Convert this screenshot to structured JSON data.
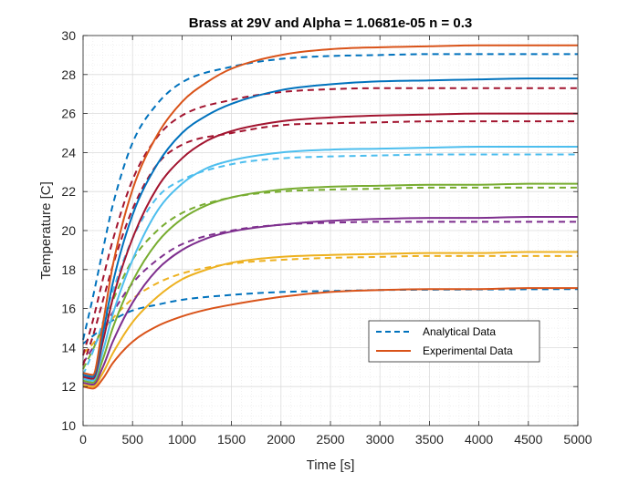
{
  "chart_data": {
    "type": "line",
    "title": "Brass at 29V and Alpha = 1.0681e-05 n = 0.3",
    "xlabel": "Time [s]",
    "ylabel": "Temperature [C]",
    "xlim": [
      0,
      5000
    ],
    "ylim": [
      10,
      30
    ],
    "xticks": [
      0,
      500,
      1000,
      1500,
      2000,
      2500,
      3000,
      3500,
      4000,
      4500,
      5000
    ],
    "yticks": [
      10,
      12,
      14,
      16,
      18,
      20,
      22,
      24,
      26,
      28,
      30
    ],
    "xtick_labels": [
      "0",
      "500",
      "1000",
      "1500",
      "2000",
      "2500",
      "3000",
      "3500",
      "4000",
      "4500",
      "5000"
    ],
    "ytick_labels": [
      "10",
      "12",
      "14",
      "16",
      "18",
      "20",
      "22",
      "24",
      "26",
      "28",
      "30"
    ],
    "grid": true,
    "legend_position": "bottom-right",
    "legend": [
      {
        "label": "Analytical Data",
        "color": "#0072BD",
        "style": "dashed"
      },
      {
        "label": "Experimental Data",
        "color": "#D95319",
        "style": "solid"
      }
    ],
    "series": [
      {
        "group": "analytical",
        "color": "#0072BD",
        "style": "dashed",
        "x": [
          0,
          100,
          200,
          300,
          500,
          750,
          1000,
          1500,
          2000,
          2500,
          3000,
          3500,
          4000,
          4500,
          5000
        ],
        "y": [
          14.2,
          14.6,
          15.0,
          15.4,
          15.9,
          16.2,
          16.45,
          16.7,
          16.85,
          16.9,
          16.95,
          16.97,
          16.98,
          16.99,
          17.0
        ]
      },
      {
        "group": "experimental",
        "color": "#D95319",
        "style": "solid",
        "x": [
          0,
          100,
          200,
          300,
          500,
          750,
          1000,
          1250,
          1500,
          2000,
          2500,
          3000,
          3500,
          4000,
          4500,
          5000
        ],
        "y": [
          12.0,
          11.9,
          12.4,
          13.2,
          14.3,
          15.1,
          15.6,
          15.95,
          16.2,
          16.6,
          16.85,
          16.95,
          17.0,
          17.0,
          17.05,
          17.05
        ]
      },
      {
        "group": "analytical",
        "color": "#EDB120",
        "style": "dashed",
        "x": [
          0,
          100,
          200,
          300,
          500,
          750,
          1000,
          1500,
          2000,
          2500,
          3000,
          3500,
          4000,
          4500,
          5000
        ],
        "y": [
          13.7,
          14.2,
          14.9,
          15.5,
          16.5,
          17.3,
          17.8,
          18.3,
          18.5,
          18.6,
          18.65,
          18.7,
          18.7,
          18.7,
          18.7
        ]
      },
      {
        "group": "experimental",
        "color": "#EDB120",
        "style": "solid",
        "x": [
          0,
          100,
          200,
          300,
          500,
          750,
          1000,
          1250,
          1500,
          2000,
          2500,
          3000,
          3500,
          4000,
          4500,
          5000
        ],
        "y": [
          12.1,
          12.0,
          12.7,
          13.7,
          15.3,
          16.6,
          17.5,
          18.0,
          18.35,
          18.65,
          18.75,
          18.8,
          18.85,
          18.85,
          18.9,
          18.9
        ]
      },
      {
        "group": "analytical",
        "color": "#7E2F8E",
        "style": "dashed",
        "x": [
          0,
          100,
          200,
          300,
          500,
          750,
          1000,
          1500,
          2000,
          2500,
          3000,
          3500,
          4000,
          4500,
          5000
        ],
        "y": [
          13.2,
          14.0,
          14.9,
          15.8,
          17.3,
          18.5,
          19.3,
          20.0,
          20.3,
          20.4,
          20.45,
          20.45,
          20.45,
          20.45,
          20.45
        ]
      },
      {
        "group": "experimental",
        "color": "#7E2F8E",
        "style": "solid",
        "x": [
          0,
          100,
          200,
          300,
          500,
          750,
          1000,
          1250,
          1500,
          2000,
          2500,
          3000,
          3500,
          4000,
          4500,
          5000
        ],
        "y": [
          12.2,
          12.1,
          13.0,
          14.3,
          16.3,
          18.0,
          19.0,
          19.6,
          19.95,
          20.3,
          20.5,
          20.6,
          20.65,
          20.65,
          20.7,
          20.7
        ]
      },
      {
        "group": "analytical",
        "color": "#77AC30",
        "style": "dashed",
        "x": [
          0,
          100,
          200,
          300,
          500,
          750,
          1000,
          1500,
          2000,
          2500,
          3000,
          3500,
          4000,
          4500,
          5000
        ],
        "y": [
          12.9,
          13.9,
          15.1,
          16.4,
          18.5,
          20.0,
          20.9,
          21.7,
          22.0,
          22.1,
          22.15,
          22.2,
          22.2,
          22.2,
          22.2
        ]
      },
      {
        "group": "experimental",
        "color": "#77AC30",
        "style": "solid",
        "x": [
          0,
          100,
          200,
          300,
          500,
          750,
          1000,
          1250,
          1500,
          2000,
          2500,
          3000,
          3500,
          4000,
          4500,
          5000
        ],
        "y": [
          12.3,
          12.2,
          13.4,
          15.0,
          17.4,
          19.4,
          20.6,
          21.3,
          21.7,
          22.1,
          22.25,
          22.3,
          22.35,
          22.35,
          22.4,
          22.4
        ]
      },
      {
        "group": "analytical",
        "color": "#4DBEEE",
        "style": "dashed",
        "x": [
          0,
          100,
          200,
          300,
          500,
          750,
          1000,
          1500,
          2000,
          2500,
          3000,
          3500,
          4000,
          4500,
          5000
        ],
        "y": [
          12.6,
          13.8,
          15.3,
          16.9,
          19.6,
          21.7,
          22.6,
          23.4,
          23.7,
          23.8,
          23.85,
          23.9,
          23.9,
          23.9,
          23.9
        ]
      },
      {
        "group": "experimental",
        "color": "#4DBEEE",
        "style": "solid",
        "x": [
          0,
          100,
          200,
          300,
          500,
          750,
          1000,
          1250,
          1500,
          2000,
          2500,
          3000,
          3500,
          4000,
          4500,
          5000
        ],
        "y": [
          12.4,
          12.3,
          13.8,
          15.7,
          18.5,
          21.0,
          22.4,
          23.2,
          23.6,
          24.0,
          24.15,
          24.2,
          24.25,
          24.3,
          24.3,
          24.3
        ]
      },
      {
        "group": "analytical",
        "color": "#A2142F",
        "style": "dashed",
        "x": [
          0,
          100,
          200,
          300,
          500,
          750,
          1000,
          1500,
          2000,
          2500,
          3000,
          3500,
          4000,
          4500,
          5000
        ],
        "y": [
          13.1,
          14.6,
          16.4,
          18.2,
          21.1,
          23.4,
          24.4,
          25.0,
          25.4,
          25.5,
          25.55,
          25.6,
          25.6,
          25.6,
          25.6
        ]
      },
      {
        "group": "experimental",
        "color": "#A2142F",
        "style": "solid",
        "x": [
          0,
          100,
          200,
          300,
          500,
          750,
          1000,
          1250,
          1500,
          2000,
          2500,
          3000,
          3500,
          4000,
          4500,
          5000
        ],
        "y": [
          12.5,
          12.4,
          14.3,
          16.5,
          19.6,
          22.2,
          23.7,
          24.6,
          25.1,
          25.6,
          25.8,
          25.9,
          25.95,
          26.0,
          26.0,
          26.0
        ]
      },
      {
        "group": "analytical",
        "color": "#A2142F",
        "style": "dashed",
        "x": [
          0,
          100,
          200,
          300,
          500,
          750,
          1000,
          1500,
          2000,
          2500,
          3000,
          3500,
          4000,
          4500,
          5000
        ],
        "y": [
          13.6,
          15.4,
          17.5,
          19.5,
          22.6,
          24.8,
          25.9,
          26.7,
          27.1,
          27.25,
          27.3,
          27.3,
          27.3,
          27.3,
          27.3
        ]
      },
      {
        "group": "experimental",
        "color": "#0072BD",
        "style": "solid",
        "x": [
          0,
          100,
          200,
          300,
          500,
          750,
          1000,
          1250,
          1500,
          2000,
          2500,
          3000,
          3500,
          4000,
          4500,
          5000
        ],
        "y": [
          12.6,
          12.5,
          14.7,
          17.3,
          20.8,
          23.4,
          25.0,
          25.9,
          26.5,
          27.2,
          27.5,
          27.65,
          27.7,
          27.75,
          27.8,
          27.8
        ]
      },
      {
        "group": "analytical",
        "color": "#0072BD",
        "style": "dashed",
        "x": [
          0,
          100,
          200,
          300,
          500,
          750,
          1000,
          1500,
          2000,
          2500,
          3000,
          3500,
          4000,
          4500,
          5000
        ],
        "y": [
          14.4,
          16.6,
          19.0,
          21.3,
          24.5,
          26.5,
          27.6,
          28.4,
          28.8,
          28.95,
          29.0,
          29.05,
          29.05,
          29.05,
          29.05
        ]
      },
      {
        "group": "experimental",
        "color": "#D95319",
        "style": "solid",
        "x": [
          0,
          100,
          200,
          300,
          500,
          750,
          1000,
          1250,
          1500,
          2000,
          2500,
          3000,
          3500,
          4000,
          4500,
          5000
        ],
        "y": [
          12.7,
          12.6,
          15.2,
          18.2,
          22.1,
          24.9,
          26.6,
          27.6,
          28.3,
          29.0,
          29.3,
          29.4,
          29.45,
          29.5,
          29.5,
          29.5
        ]
      }
    ]
  }
}
